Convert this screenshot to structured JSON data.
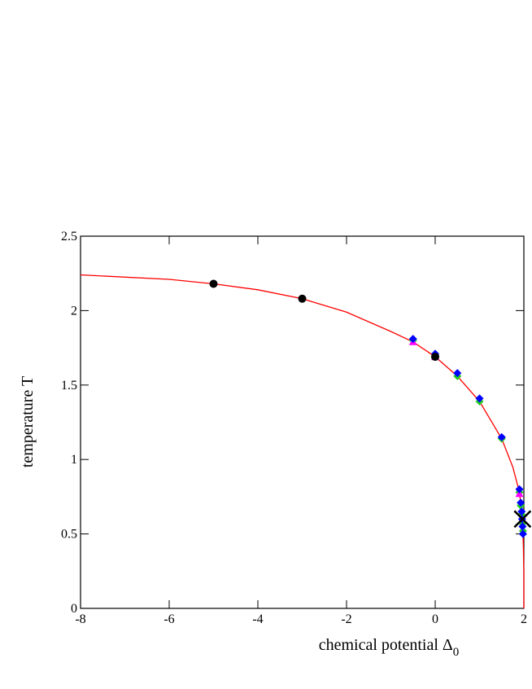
{
  "chart_data": {
    "type": "scatter",
    "xlabel": "chemical potential  Δ",
    "xlabel_subscript": "0",
    "ylabel": "temperature T",
    "xlim": [
      -8,
      2
    ],
    "ylim": [
      0,
      2.5
    ],
    "xticks": [
      -8,
      -6,
      -4,
      -2,
      0,
      2
    ],
    "yticks": [
      0,
      0.5,
      1,
      1.5,
      2,
      2.5
    ],
    "series": [
      {
        "marker": "line",
        "color": "#ff0000",
        "x": [
          -8,
          -6,
          -5,
          -4,
          -3,
          -2,
          -1,
          -0.5,
          0,
          0.5,
          1,
          1.5,
          1.75,
          1.9,
          1.95,
          1.98,
          1.99,
          2,
          2
        ],
        "values": [
          2.24,
          2.21,
          2.18,
          2.14,
          2.08,
          1.99,
          1.86,
          1.79,
          1.69,
          1.56,
          1.39,
          1.14,
          0.95,
          0.78,
          0.65,
          0.5,
          0.4,
          0.25,
          0
        ]
      },
      {
        "marker": "diamond",
        "color": "#22cc22",
        "x": [
          -0.5,
          0,
          0.5,
          1,
          1.5,
          1.9,
          1.93,
          1.95,
          1.97,
          1.98
        ],
        "values": [
          1.8,
          1.7,
          1.56,
          1.39,
          1.14,
          0.78,
          0.69,
          0.63,
          0.57,
          0.52
        ]
      },
      {
        "marker": "triangle",
        "color": "#ff00ff",
        "x": [
          -0.5,
          0,
          1.9
        ],
        "values": [
          1.79,
          1.69,
          0.77
        ]
      },
      {
        "marker": "diamond",
        "color": "#0000ff",
        "x": [
          -0.5,
          0,
          0.5,
          1,
          1.5,
          1.9,
          1.93,
          1.95,
          1.96,
          1.97,
          1.98
        ],
        "values": [
          1.81,
          1.71,
          1.58,
          1.41,
          1.15,
          0.8,
          0.71,
          0.65,
          0.6,
          0.55,
          0.5
        ]
      },
      {
        "marker": "circle",
        "color": "#000000",
        "x": [
          -5,
          -3,
          0
        ],
        "values": [
          2.18,
          2.08,
          1.69
        ]
      },
      {
        "marker": "cross",
        "color": "#000000",
        "x": [
          1.97
        ],
        "values": [
          0.6
        ]
      }
    ]
  }
}
